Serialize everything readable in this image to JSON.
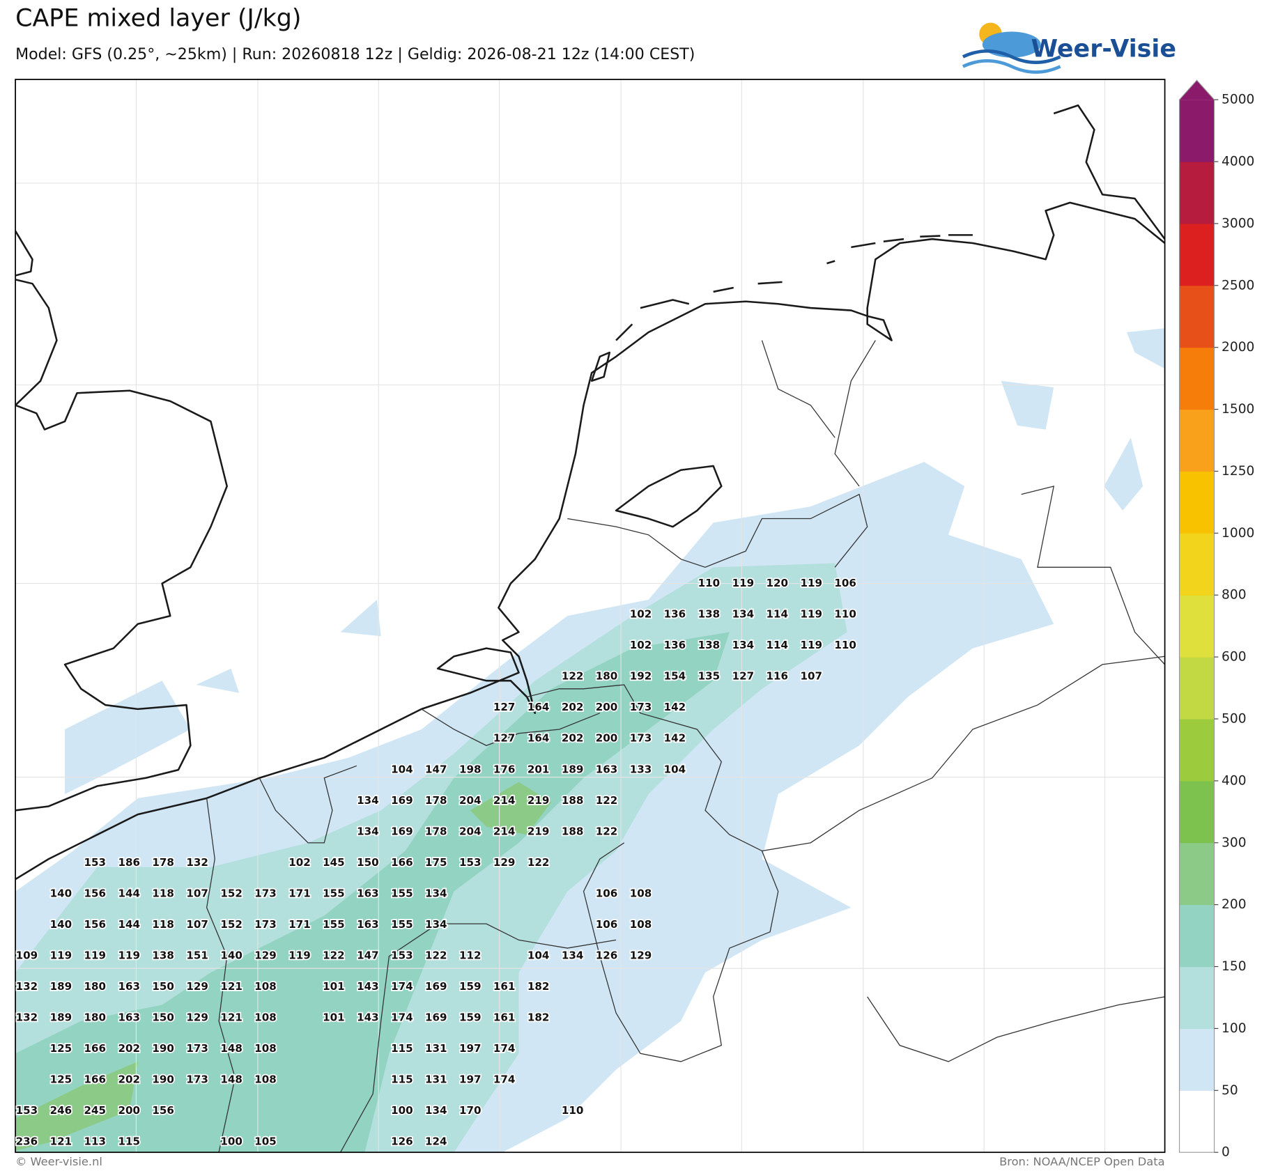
{
  "header": {
    "title": "CAPE mixed layer (J/kg)",
    "subtitle": "Model: GFS (0.25°, ~25km)  |  Run: 20260818 12z  |  Geldig: 2026-08-21 12z (14:00 CEST)",
    "logo": "Weer-Visie"
  },
  "colorbar": {
    "levels": [
      0,
      50,
      100,
      150,
      200,
      300,
      400,
      500,
      600,
      800,
      1000,
      1250,
      1500,
      2000,
      2500,
      3000,
      4000,
      5000
    ],
    "colors": [
      "#ffffff",
      "#d0e6f5",
      "#b3dfdc",
      "#93d3c2",
      "#8ccb87",
      "#7dc24f",
      "#9ccc3e",
      "#c3d944",
      "#dfe03c",
      "#f2d41c",
      "#f9c200",
      "#f9a11a",
      "#f67d0a",
      "#e8501a",
      "#dc2020",
      "#b51c3e",
      "#8b1a6a"
    ]
  },
  "map": {
    "rows": [
      [
        null,
        null,
        null,
        null,
        null,
        null,
        null,
        null,
        null,
        null,
        null,
        null,
        null,
        null,
        null,
        null,
        null,
        null,
        null,
        null,
        110,
        119,
        120,
        119,
        106
      ],
      [
        null,
        null,
        null,
        null,
        null,
        null,
        null,
        null,
        null,
        null,
        null,
        null,
        null,
        null,
        null,
        null,
        null,
        null,
        102,
        136,
        138,
        134,
        114,
        119,
        110
      ],
      [
        null,
        null,
        null,
        null,
        null,
        null,
        null,
        null,
        null,
        null,
        null,
        null,
        null,
        null,
        null,
        null,
        null,
        null,
        102,
        136,
        138,
        134,
        114,
        119,
        110
      ],
      [
        null,
        null,
        null,
        null,
        null,
        null,
        null,
        null,
        null,
        null,
        null,
        null,
        null,
        null,
        null,
        null,
        122,
        180,
        192,
        154,
        135,
        127,
        116,
        107,
        null
      ],
      [
        null,
        null,
        null,
        null,
        null,
        null,
        null,
        null,
        null,
        null,
        null,
        null,
        null,
        null,
        127,
        164,
        202,
        200,
        173,
        142,
        null,
        null,
        null,
        null,
        null
      ],
      [
        null,
        null,
        null,
        null,
        null,
        null,
        null,
        null,
        null,
        null,
        null,
        null,
        null,
        null,
        127,
        164,
        202,
        200,
        173,
        142,
        null,
        null,
        null,
        null,
        null
      ],
      [
        null,
        null,
        null,
        null,
        null,
        null,
        null,
        null,
        null,
        null,
        null,
        104,
        147,
        198,
        176,
        201,
        189,
        163,
        133,
        104,
        null,
        null,
        null,
        null,
        null
      ],
      [
        null,
        null,
        null,
        null,
        null,
        null,
        null,
        null,
        null,
        null,
        134,
        169,
        178,
        204,
        214,
        219,
        188,
        122,
        null,
        null,
        null,
        null,
        null,
        null,
        null
      ],
      [
        null,
        null,
        null,
        null,
        null,
        null,
        null,
        null,
        null,
        null,
        134,
        169,
        178,
        204,
        214,
        219,
        188,
        122,
        null,
        null,
        null,
        null,
        null,
        null,
        null
      ],
      [
        null,
        null,
        153,
        186,
        178,
        132,
        null,
        null,
        102,
        145,
        150,
        166,
        175,
        153,
        129,
        122,
        null,
        null,
        null,
        null,
        null,
        null,
        null,
        null,
        null
      ],
      [
        null,
        140,
        156,
        144,
        118,
        107,
        152,
        173,
        171,
        155,
        163,
        155,
        134,
        null,
        null,
        null,
        null,
        106,
        108,
        null,
        null,
        null,
        null,
        null,
        null
      ],
      [
        null,
        140,
        156,
        144,
        118,
        107,
        152,
        173,
        171,
        155,
        163,
        155,
        134,
        null,
        null,
        null,
        null,
        106,
        108,
        null,
        null,
        null,
        null,
        null,
        null
      ],
      [
        109,
        119,
        119,
        119,
        138,
        151,
        140,
        129,
        119,
        122,
        147,
        153,
        122,
        112,
        null,
        104,
        134,
        126,
        129,
        null,
        null,
        null,
        null,
        null,
        null
      ],
      [
        132,
        189,
        180,
        163,
        150,
        129,
        121,
        108,
        null,
        101,
        143,
        174,
        169,
        159,
        161,
        182,
        null,
        null,
        null,
        null,
        null,
        null,
        null,
        null,
        null
      ],
      [
        132,
        189,
        180,
        163,
        150,
        129,
        121,
        108,
        null,
        101,
        143,
        174,
        169,
        159,
        161,
        182,
        null,
        null,
        null,
        null,
        null,
        null,
        null,
        null,
        null
      ],
      [
        null,
        125,
        166,
        202,
        190,
        173,
        148,
        108,
        null,
        null,
        null,
        115,
        131,
        197,
        174,
        null,
        null,
        null,
        null,
        null,
        null,
        null,
        null,
        null,
        null
      ],
      [
        null,
        125,
        166,
        202,
        190,
        173,
        148,
        108,
        null,
        null,
        null,
        115,
        131,
        197,
        174,
        null,
        null,
        null,
        null,
        null,
        null,
        null,
        null,
        null,
        null
      ],
      [
        153,
        246,
        245,
        200,
        156,
        null,
        null,
        null,
        null,
        null,
        null,
        100,
        134,
        170,
        null,
        null,
        110,
        null,
        null,
        null,
        null,
        null,
        null,
        null,
        null
      ],
      [
        236,
        121,
        113,
        115,
        null,
        null,
        100,
        105,
        null,
        null,
        null,
        126,
        124,
        null,
        null,
        null,
        null,
        null,
        null,
        null,
        null,
        null,
        null,
        null,
        null
      ]
    ]
  },
  "footer": {
    "left": "© Weer-visie.nl",
    "right": "Bron: NOAA/NCEP Open Data"
  }
}
